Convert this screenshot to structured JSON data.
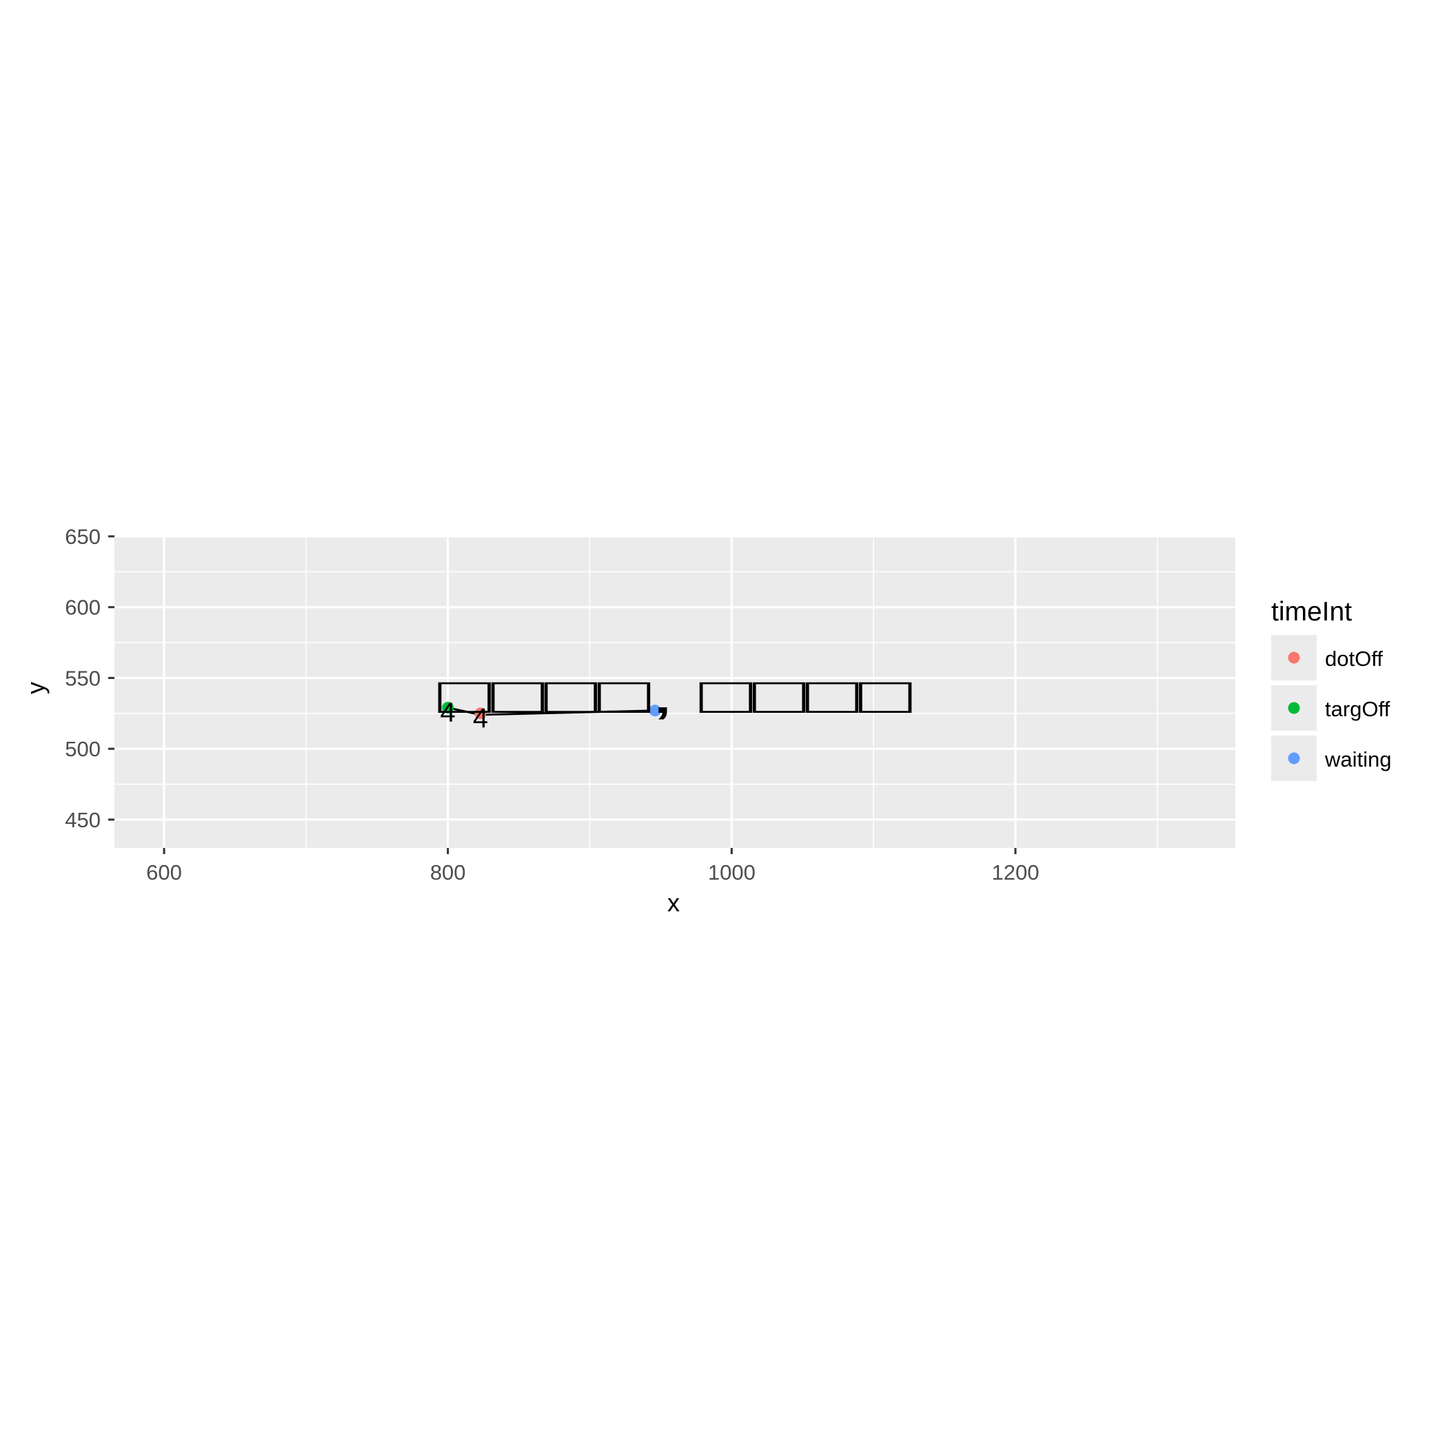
{
  "chart_data": {
    "type": "scatter",
    "title": "",
    "xlabel": "x",
    "ylabel": "y",
    "xlim": [
      565,
      1355
    ],
    "ylim": [
      430,
      650
    ],
    "x_ticks": [
      600,
      800,
      1000,
      1200
    ],
    "y_ticks": [
      450,
      500,
      550,
      600,
      650
    ],
    "grid": true,
    "legend": {
      "title": "timeInt",
      "placement": "right",
      "entries": [
        {
          "label": "dotOff",
          "color": "#F8766D"
        },
        {
          "label": "targOff",
          "color": "#00BA38"
        },
        {
          "label": "waiting",
          "color": "#619CFF"
        }
      ]
    },
    "series": [
      {
        "name": "dotOff",
        "color": "#F8766D",
        "points": [
          {
            "x": 823,
            "y": 525
          }
        ]
      },
      {
        "name": "targOff",
        "color": "#00BA38",
        "points": [
          {
            "x": 800,
            "y": 529
          }
        ]
      },
      {
        "name": "waiting",
        "color": "#619CFF",
        "points": [
          {
            "x": 946,
            "y": 527
          }
        ]
      }
    ],
    "path": [
      {
        "x": 946,
        "y": 527
      },
      {
        "x": 823,
        "y": 524
      },
      {
        "x": 800,
        "y": 529
      }
    ],
    "point_labels": [
      {
        "text": "4",
        "x": 800,
        "y": 529
      },
      {
        "text": "4",
        "x": 823,
        "y": 525
      }
    ],
    "annotation": {
      "text": "□□□□, □□□□",
      "x_start": 793,
      "x_end": 1127,
      "y": 541
    }
  }
}
